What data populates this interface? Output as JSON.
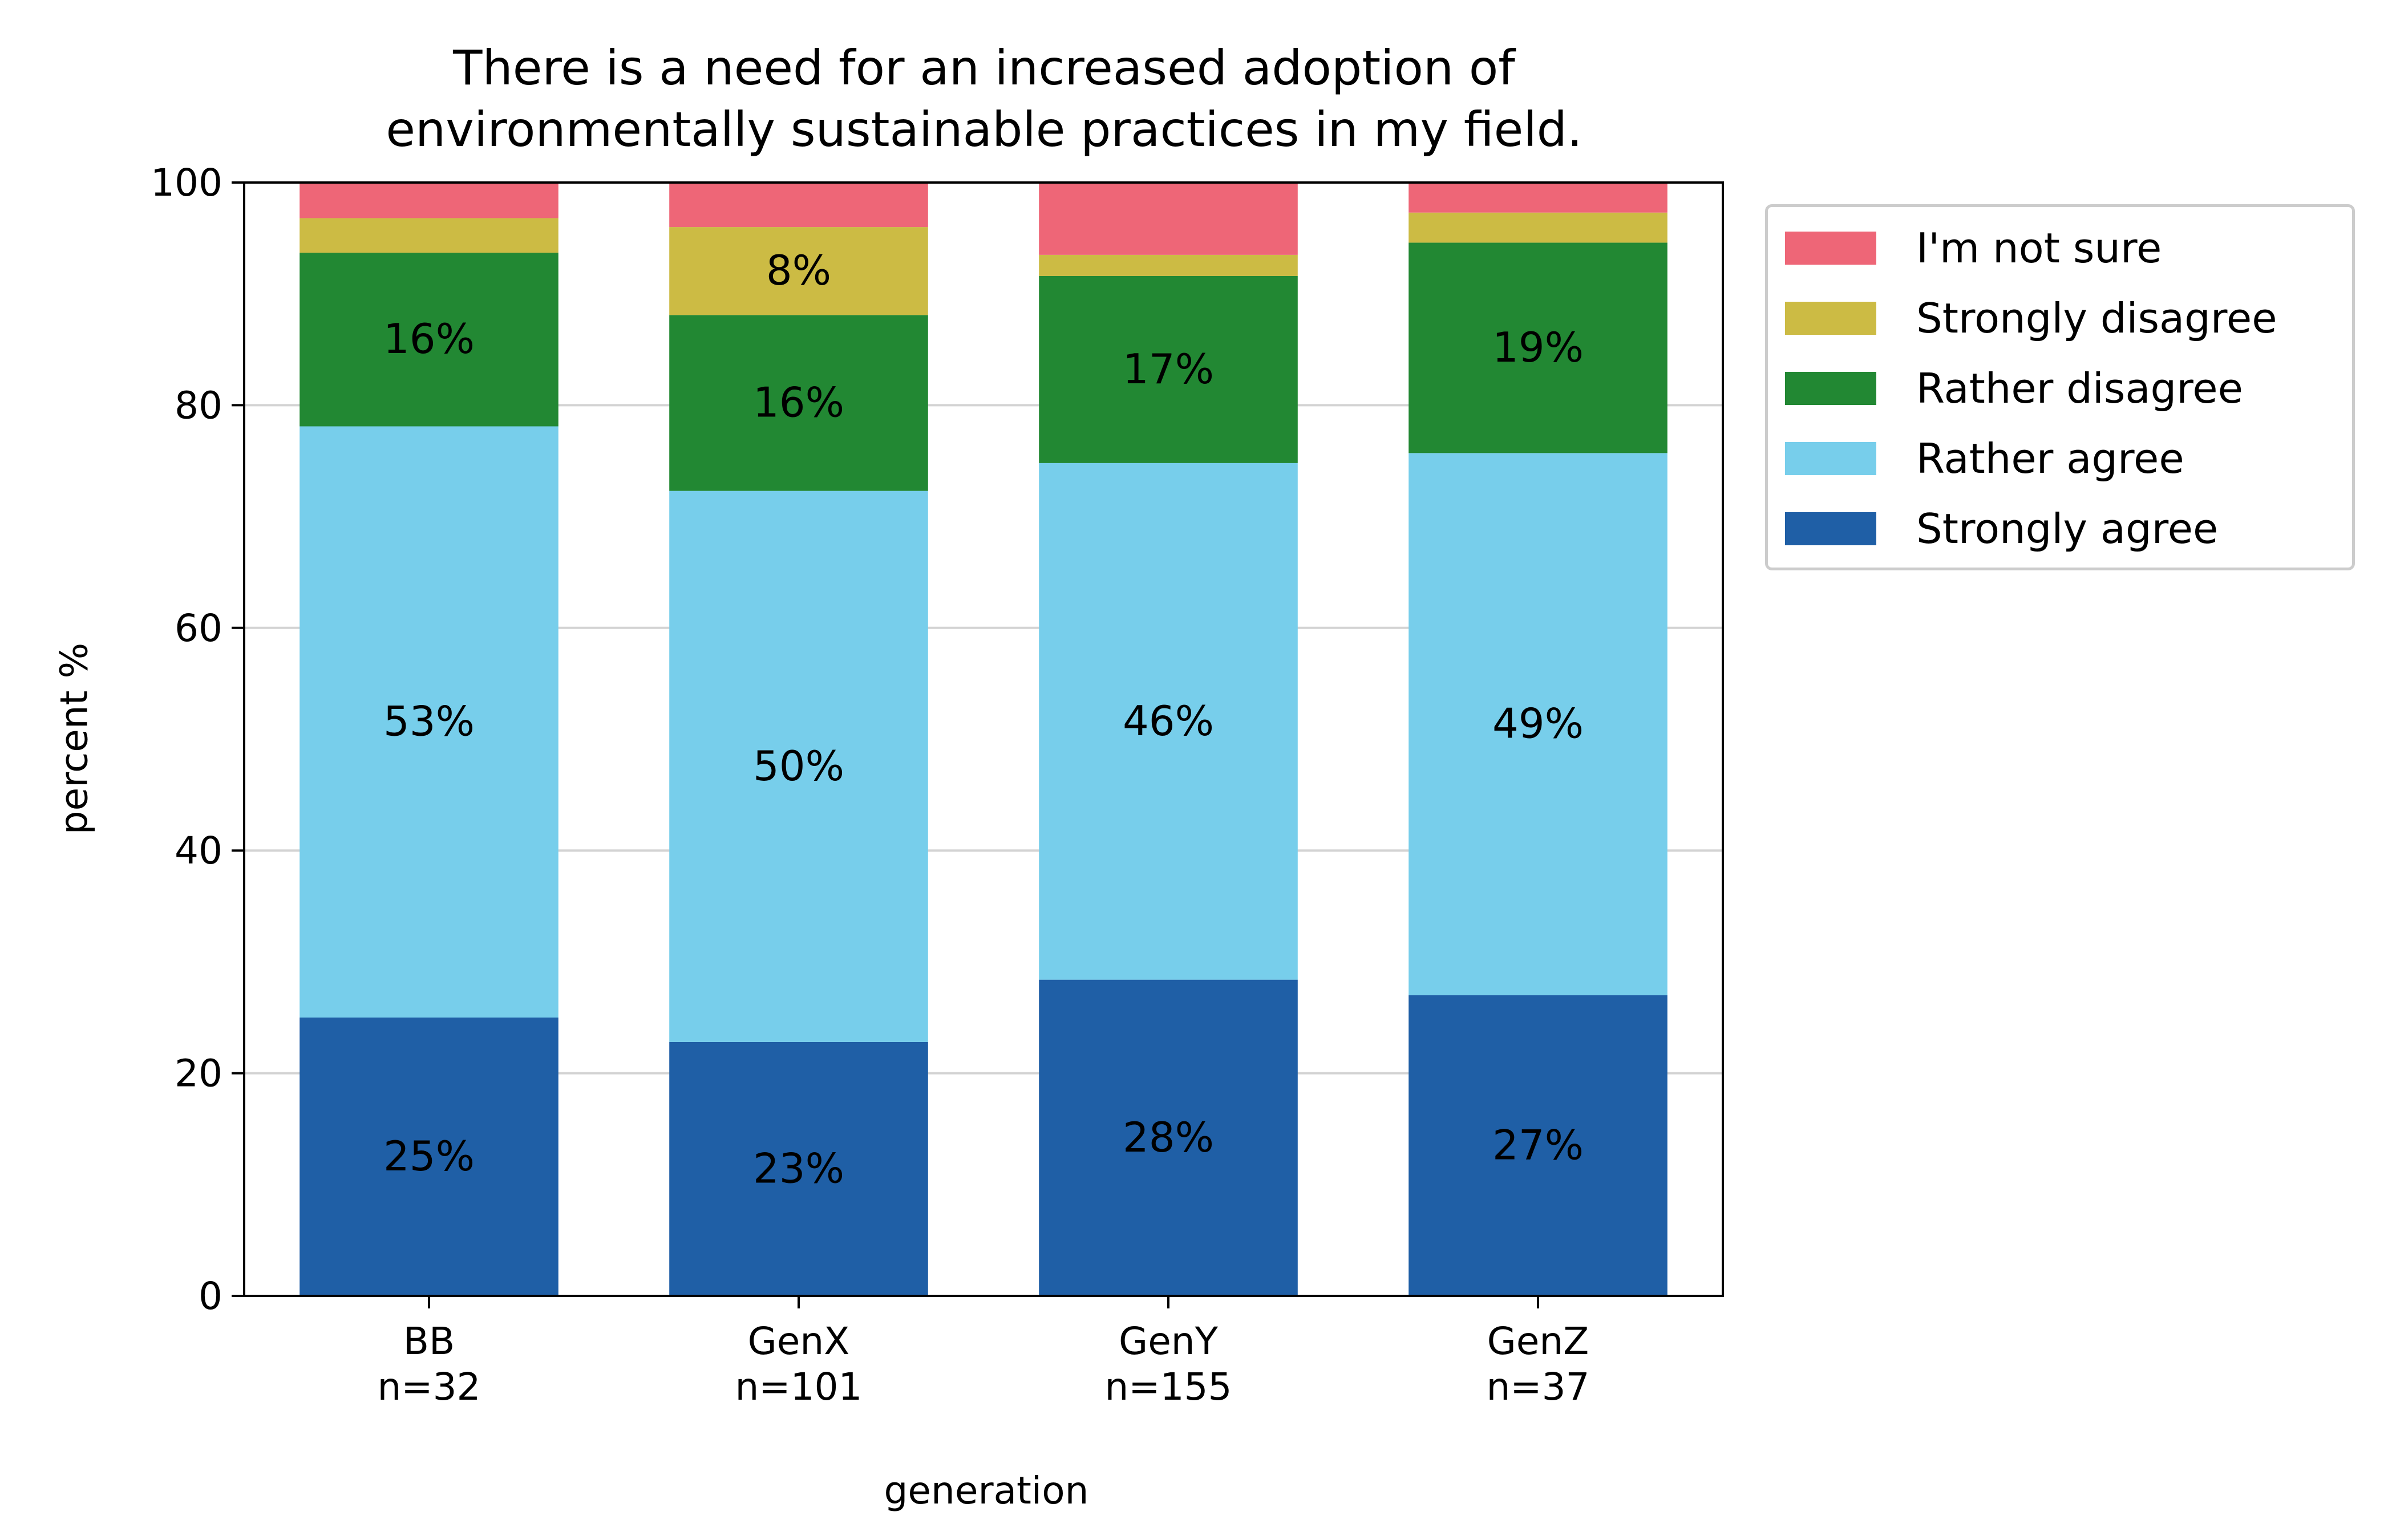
{
  "chart_data": {
    "type": "bar",
    "stacked": true,
    "title": "There is a need for an increased adoption of environmentally sustainable practices in my field.",
    "title_lines": [
      "There is a need for an increased adoption of",
      "environmentally sustainable practices in my field."
    ],
    "xlabel": "generation",
    "ylabel": "percent %",
    "ylim": [
      0,
      100
    ],
    "yticks": [
      0,
      20,
      40,
      60,
      80,
      100
    ],
    "grid": "horizontal",
    "legend_position": "outside-right-top",
    "categories": [
      "BB",
      "GenX",
      "GenY",
      "GenZ"
    ],
    "category_counts": [
      "n=32",
      "n=101",
      "n=155",
      "n=37"
    ],
    "series": [
      {
        "name": "Strongly agree",
        "color": "#1f5fa6",
        "values": [
          25,
          22.8,
          28.4,
          27.0
        ],
        "labels": [
          "25%",
          "23%",
          "28%",
          "27%"
        ]
      },
      {
        "name": "Rather agree",
        "color": "#77ceeb",
        "values": [
          53.1,
          49.5,
          46.4,
          48.7
        ],
        "labels": [
          "53%",
          "50%",
          "46%",
          "49%"
        ]
      },
      {
        "name": "Rather disagree",
        "color": "#228833",
        "values": [
          15.6,
          15.8,
          16.8,
          18.9
        ],
        "labels": [
          "16%",
          "16%",
          "17%",
          "19%"
        ]
      },
      {
        "name": "Strongly disagree",
        "color": "#ccbb44",
        "values": [
          3.1,
          7.9,
          1.9,
          2.7
        ],
        "labels": [
          "",
          "8%",
          "",
          ""
        ]
      },
      {
        "name": "I'm not sure",
        "color": "#ee6677",
        "values": [
          3.1,
          4.0,
          6.5,
          2.7
        ],
        "labels": [
          "",
          "",
          "",
          ""
        ]
      }
    ]
  }
}
